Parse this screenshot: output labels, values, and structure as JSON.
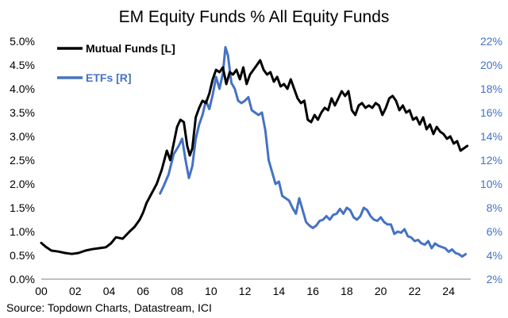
{
  "chart_data": {
    "type": "line",
    "title": "EM Equity Funds % All Equity Funds",
    "source": "Source: Topdown Charts, Datastream, ICI",
    "xlabel": "",
    "x_range": [
      0,
      25.3
    ],
    "x_ticks": [
      0,
      2,
      4,
      6,
      8,
      10,
      12,
      14,
      16,
      18,
      20,
      22,
      24
    ],
    "x_tick_labels": [
      "00",
      "02",
      "04",
      "06",
      "08",
      "10",
      "12",
      "14",
      "16",
      "18",
      "20",
      "22",
      "24"
    ],
    "y_left": {
      "label": "",
      "range": [
        0,
        5
      ],
      "ticks": [
        0,
        0.5,
        1,
        1.5,
        2,
        2.5,
        3,
        3.5,
        4,
        4.5,
        5
      ],
      "tick_labels": [
        "0.0%",
        "0.5%",
        "1.0%",
        "1.5%",
        "2.0%",
        "2.5%",
        "3.0%",
        "3.5%",
        "4.0%",
        "4.5%",
        "5.0%"
      ]
    },
    "y_right": {
      "label": "",
      "range": [
        2,
        22
      ],
      "ticks": [
        2,
        4,
        6,
        8,
        10,
        12,
        14,
        16,
        18,
        20,
        22
      ],
      "tick_labels": [
        "2%",
        "4%",
        "6%",
        "8%",
        "10%",
        "12%",
        "14%",
        "16%",
        "18%",
        "20%",
        "22%"
      ]
    },
    "grid": false,
    "legend_position": "top-left",
    "series": [
      {
        "name": "Mutual Funds [L]",
        "axis": "left",
        "color": "#000000",
        "x": [
          0.0,
          0.3,
          0.6,
          1.0,
          1.4,
          1.8,
          2.2,
          2.6,
          3.0,
          3.4,
          3.8,
          4.1,
          4.4,
          4.8,
          5.2,
          5.5,
          5.8,
          6.0,
          6.2,
          6.5,
          6.8,
          7.1,
          7.4,
          7.6,
          7.8,
          8.0,
          8.2,
          8.4,
          8.6,
          8.75,
          8.9,
          9.1,
          9.3,
          9.5,
          9.7,
          9.9,
          10.1,
          10.3,
          10.5,
          10.7,
          10.9,
          11.1,
          11.3,
          11.5,
          11.7,
          11.9,
          12.1,
          12.3,
          12.5,
          12.7,
          12.9,
          13.1,
          13.3,
          13.5,
          13.7,
          13.9,
          14.1,
          14.3,
          14.5,
          14.7,
          14.9,
          15.1,
          15.3,
          15.5,
          15.7,
          15.9,
          16.1,
          16.3,
          16.5,
          16.7,
          16.9,
          17.1,
          17.3,
          17.5,
          17.7,
          17.9,
          18.1,
          18.3,
          18.5,
          18.7,
          18.9,
          19.1,
          19.3,
          19.5,
          19.7,
          19.9,
          20.1,
          20.3,
          20.5,
          20.7,
          20.9,
          21.1,
          21.3,
          21.5,
          21.7,
          21.9,
          22.1,
          22.3,
          22.5,
          22.7,
          22.9,
          23.1,
          23.3,
          23.5,
          23.7,
          23.9,
          24.1,
          24.3,
          24.5,
          24.7,
          24.9,
          25.1
        ],
        "values": [
          0.76,
          0.67,
          0.6,
          0.58,
          0.55,
          0.53,
          0.55,
          0.6,
          0.63,
          0.65,
          0.67,
          0.75,
          0.88,
          0.85,
          1.0,
          1.1,
          1.25,
          1.4,
          1.6,
          1.8,
          2.0,
          2.3,
          2.7,
          2.5,
          2.85,
          3.2,
          3.35,
          3.3,
          2.8,
          2.6,
          2.75,
          3.4,
          3.6,
          3.75,
          3.7,
          3.9,
          4.2,
          4.4,
          4.35,
          4.45,
          4.1,
          4.35,
          4.3,
          4.4,
          4.2,
          4.45,
          4.1,
          4.3,
          4.4,
          4.5,
          4.6,
          4.4,
          4.3,
          4.35,
          4.15,
          4.25,
          4.05,
          4.1,
          4.0,
          4.2,
          4.0,
          3.8,
          3.7,
          3.75,
          3.35,
          3.3,
          3.45,
          3.35,
          3.5,
          3.6,
          3.55,
          3.8,
          3.65,
          3.8,
          3.95,
          3.85,
          3.95,
          3.55,
          3.45,
          3.65,
          3.7,
          3.6,
          3.65,
          3.6,
          3.7,
          3.65,
          3.45,
          3.6,
          3.8,
          3.85,
          3.75,
          3.55,
          3.65,
          3.5,
          3.55,
          3.35,
          3.4,
          3.25,
          3.4,
          3.15,
          3.25,
          3.05,
          3.2,
          3.1,
          3.05,
          2.95,
          3.0,
          2.85,
          2.9,
          2.7,
          2.75,
          2.8
        ]
      },
      {
        "name": "ETFs [R]",
        "axis": "right",
        "color": "#4472c4",
        "x": [
          7.0,
          7.2,
          7.5,
          7.8,
          8.1,
          8.3,
          8.5,
          8.7,
          8.9,
          9.1,
          9.3,
          9.5,
          9.7,
          9.9,
          10.1,
          10.3,
          10.5,
          10.7,
          10.85,
          11.0,
          11.2,
          11.4,
          11.6,
          11.8,
          12.0,
          12.2,
          12.4,
          12.6,
          12.8,
          13.0,
          13.2,
          13.4,
          13.6,
          13.8,
          14.0,
          14.2,
          14.4,
          14.6,
          14.8,
          15.0,
          15.2,
          15.4,
          15.6,
          15.8,
          16.0,
          16.2,
          16.4,
          16.6,
          16.8,
          17.0,
          17.2,
          17.4,
          17.6,
          17.8,
          18.0,
          18.2,
          18.4,
          18.6,
          18.8,
          19.0,
          19.2,
          19.4,
          19.6,
          19.8,
          20.0,
          20.2,
          20.4,
          20.6,
          20.8,
          21.0,
          21.2,
          21.4,
          21.6,
          21.8,
          22.0,
          22.2,
          22.4,
          22.6,
          22.8,
          23.0,
          23.2,
          23.4,
          23.6,
          23.8,
          24.0,
          24.2,
          24.4,
          24.6,
          24.8,
          25.0
        ],
        "values": [
          9.2,
          9.8,
          10.8,
          12.5,
          13.2,
          13.8,
          12.0,
          10.5,
          11.5,
          13.8,
          15.0,
          15.8,
          17.0,
          16.3,
          17.5,
          19.0,
          18.0,
          19.3,
          21.5,
          20.8,
          18.5,
          18.0,
          17.0,
          16.8,
          17.0,
          17.3,
          16.2,
          16.0,
          15.8,
          16.0,
          14.5,
          12.0,
          11.0,
          10.0,
          10.2,
          9.0,
          8.8,
          8.6,
          8.0,
          7.5,
          8.8,
          7.8,
          6.8,
          6.5,
          6.3,
          6.5,
          6.9,
          7.0,
          7.3,
          7.0,
          7.4,
          7.5,
          7.9,
          7.5,
          8.0,
          7.8,
          7.2,
          7.0,
          7.3,
          8.0,
          7.8,
          7.3,
          7.0,
          6.9,
          7.2,
          6.8,
          6.6,
          6.6,
          5.8,
          6.0,
          5.9,
          6.2,
          5.6,
          5.5,
          5.2,
          5.3,
          5.0,
          4.9,
          5.2,
          4.6,
          5.0,
          4.8,
          4.7,
          4.6,
          4.3,
          4.5,
          4.2,
          4.1,
          3.9,
          4.1
        ]
      }
    ]
  }
}
